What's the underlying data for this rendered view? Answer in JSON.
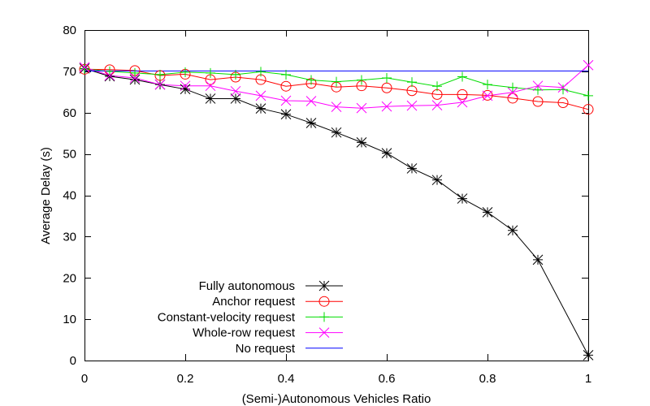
{
  "chart_data": {
    "type": "line",
    "title": "",
    "xlabel": "(Semi-)Autonomous Vehicles Ratio",
    "ylabel": "Average Delay (s)",
    "xlim": [
      0,
      1
    ],
    "ylim": [
      0,
      80
    ],
    "x_ticks": [
      "0",
      "0.2",
      "0.4",
      "0.6",
      "0.8",
      "1"
    ],
    "y_ticks": [
      "0",
      "10",
      "20",
      "30",
      "40",
      "50",
      "60",
      "70",
      "80"
    ],
    "grid": false,
    "legend_position": "bottom-center",
    "x": [
      0,
      0.05,
      0.1,
      0.15,
      0.2,
      0.25,
      0.3,
      0.35,
      0.4,
      0.45,
      0.5,
      0.55,
      0.6,
      0.65,
      0.7,
      0.75,
      0.8,
      0.85,
      0.9,
      0.95,
      1.0
    ],
    "series": [
      {
        "name": "Fully autonomous",
        "color": "#000000",
        "marker": "star",
        "values": [
          70.7,
          68.8,
          68.0,
          66.8,
          65.7,
          63.4,
          63.4,
          61.0,
          59.6,
          57.5,
          55.2,
          52.8,
          50.2,
          46.5,
          43.7,
          39.2,
          35.9,
          31.5,
          24.4,
          null,
          1.3
        ]
      },
      {
        "name": "Anchor request",
        "color": "#ff0000",
        "marker": "circle",
        "values": [
          70.5,
          70.4,
          70.2,
          69.0,
          69.3,
          68.0,
          68.6,
          68.0,
          66.4,
          67.1,
          66.2,
          66.5,
          66.0,
          65.3,
          64.4,
          64.4,
          64.2,
          63.5,
          62.7,
          62.4,
          60.8
        ]
      },
      {
        "name": "Constant-velocity request",
        "color": "#00dd00",
        "marker": "plus",
        "values": [
          70.6,
          70.0,
          69.6,
          69.2,
          69.8,
          69.6,
          69.2,
          69.9,
          69.2,
          67.9,
          67.5,
          67.9,
          68.4,
          67.4,
          66.4,
          68.7,
          66.8,
          66.1,
          65.5,
          65.6,
          64.1
        ]
      },
      {
        "name": "Whole-row request",
        "color": "#ff00ff",
        "marker": "x",
        "values": [
          71.0,
          69.0,
          68.4,
          66.8,
          66.5,
          66.5,
          65.2,
          64.1,
          62.9,
          62.8,
          61.4,
          61.1,
          61.5,
          61.7,
          61.8,
          62.5,
          64.1,
          64.9,
          66.5,
          66.1,
          71.5
        ]
      },
      {
        "name": "No request",
        "color": "#0000ff",
        "marker": "none",
        "values": [
          70.1,
          null,
          null,
          null,
          null,
          null,
          null,
          null,
          null,
          null,
          null,
          null,
          null,
          null,
          null,
          null,
          null,
          null,
          null,
          null,
          70.1
        ]
      }
    ]
  }
}
